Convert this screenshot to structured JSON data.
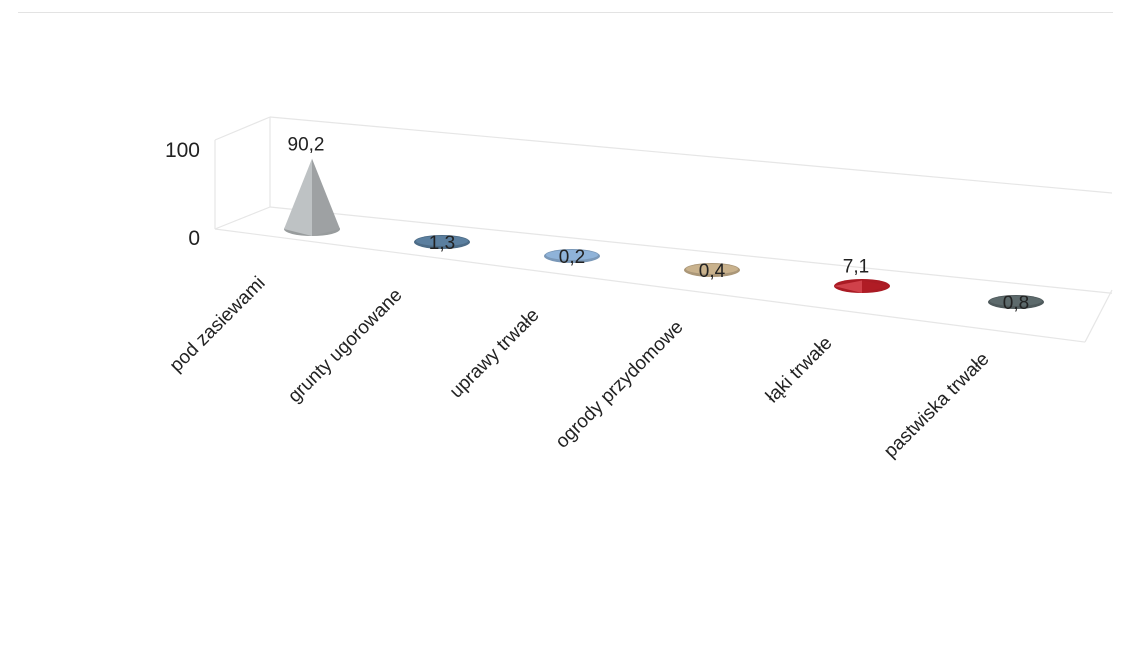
{
  "chart_data": {
    "type": "bar",
    "shape": "cone",
    "categories": [
      "pod zasiewami",
      "grunty ugorowane",
      "uprawy trwałe",
      "ogrody przydomowe",
      "łąki trwałe",
      "pastwiska trwałe"
    ],
    "values": [
      90.2,
      1.3,
      0.2,
      0.4,
      7.1,
      0.8
    ],
    "data_labels": [
      "90,2",
      "1,3",
      "0,2",
      "0,4",
      "7,1",
      "0,8"
    ],
    "y_ticks": [
      "0",
      "100"
    ],
    "ylim": [
      0,
      100
    ],
    "title": "",
    "xlabel": "",
    "ylabel": "",
    "grid": false,
    "legend": "none",
    "colors": [
      "#b3b7b9",
      "#5b7f9f",
      "#8fb3d9",
      "#c9b28d",
      "#c8202a",
      "#5d6a6c"
    ]
  }
}
